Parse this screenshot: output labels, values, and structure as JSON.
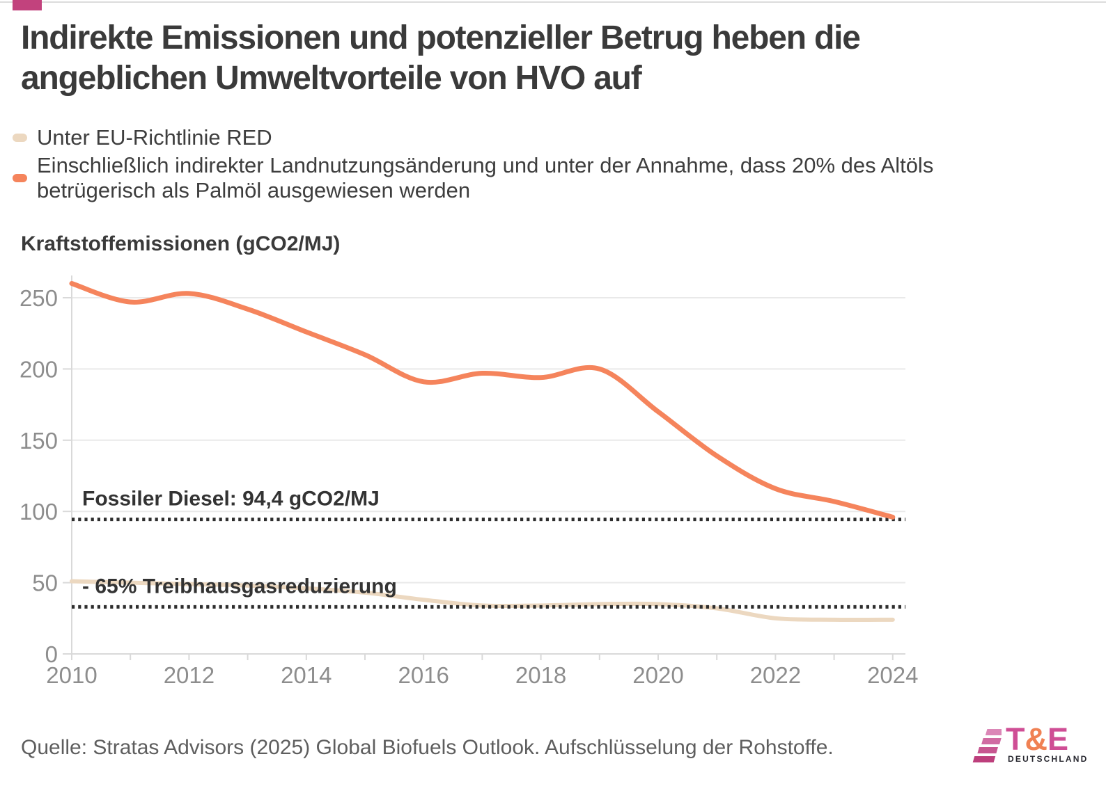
{
  "brand": {
    "accent_color": "#c2427d"
  },
  "title": {
    "line1": "Indirekte Emissionen und potenzieller Betrug heben die",
    "line2": "angeblichen Umweltvorteile von HVO auf"
  },
  "legend": {
    "items": [
      {
        "color": "#ecd8c0",
        "lines": [
          "Unter EU-Richtlinie RED"
        ]
      },
      {
        "color": "#f5845c",
        "lines": [
          "Einschließlich indirekter Landnutzungsänderung und unter der Annahme, dass 20% des Altöls",
          "betrügerisch als Palmöl ausgewiesen werden"
        ]
      }
    ]
  },
  "chart_data": {
    "type": "line",
    "ylabel": "Kraftstoffemissionen (gCO2/MJ)",
    "xlabel": "",
    "x": [
      2010,
      2011,
      2012,
      2013,
      2014,
      2015,
      2016,
      2017,
      2018,
      2019,
      2020,
      2021,
      2022,
      2023,
      2024
    ],
    "series": [
      {
        "name": "Unter EU-Richtlinie RED",
        "color": "#ecd8c0",
        "values": [
          51,
          50,
          49,
          48,
          46,
          43,
          38,
          34,
          34,
          35,
          35,
          32,
          25,
          24,
          24
        ]
      },
      {
        "name": "Einschließlich indirekter Landnutzungsänderung und unter der Annahme, dass 20% des Altöls betrügerisch als Palmöl ausgewiesen werden",
        "color": "#f5845c",
        "values": [
          260,
          247,
          253,
          242,
          226,
          210,
          191,
          197,
          194,
          200,
          170,
          139,
          116,
          107,
          96
        ]
      }
    ],
    "reference_lines": [
      {
        "id": "fossil-diesel",
        "label": "Fossiler Diesel: 94,4 gCO2/MJ",
        "value": 94.4
      },
      {
        "id": "minus-65-ghg",
        "label": "- 65% Treibhausgasreduzierung",
        "value": 33
      }
    ],
    "ylim": [
      0,
      250
    ],
    "yticks": [
      0,
      50,
      100,
      150,
      200,
      250
    ],
    "xticks_labeled": [
      2010,
      2012,
      2014,
      2016,
      2018,
      2020,
      2022,
      2024
    ],
    "grid": "horizontal",
    "legend_position": "top",
    "colors": {
      "grid": "#e9e9e9",
      "axis": "#d9d9d9",
      "tick_label": "#8d8d8d",
      "reference_line": "#2e2e2e",
      "reference_label": "#333333"
    }
  },
  "footer": {
    "source": "Quelle: Stratas Advisors (2025) Global Biofuels Outlook. Aufschlüsselung der Rohstoffe.",
    "logo": {
      "letters": [
        "T",
        "&",
        "E"
      ],
      "letter_colors": [
        "#cf4e95",
        "#f08153",
        "#cf4e95"
      ],
      "stripe_colors": [
        "#db87b7",
        "#d06ba2",
        "#c75690",
        "#bd3f7c"
      ],
      "tagline": "DEUTSCHLAND"
    }
  }
}
